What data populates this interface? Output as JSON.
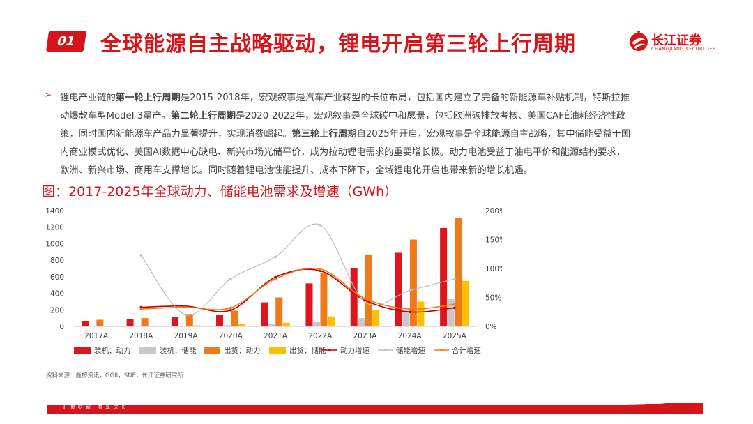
{
  "header": {
    "badge": "01",
    "title": "全球能源自主战略驱动，锂电开启第三轮上行周期"
  },
  "logo": {
    "cn": "长江证券",
    "en": "CHANGJIANG SECURITIES"
  },
  "body": {
    "bullet": "➢",
    "seg1": "锂电产业链的",
    "bold1": "第一轮上行周期",
    "seg2": "是2015-2018年，宏观叙事是汽车产业转型的卡位布局，包括国内建立了完备的新能源车补贴机制，特斯拉推动爆款车型Model  3量产。",
    "bold2": "第二轮上行周期",
    "seg3": "是2020-2022年，宏观叙事是全球碳中和愿景，包括欧洲碳排放考核、美国CAFÉ油耗经济性政策，同时国内新能源车产品力显著提升，实现消费崛起。",
    "bold3": "第三轮上行周期",
    "seg4": "自2025年开启，宏观叙事是全球能源自主战略，其中储能受益于国内商业模式优化、美国AI数据中心缺电、新兴市场光储平价，成为拉动锂电需求的重要增长极。动力电池受益于油电平价和能源结构要求，欧洲、新兴市场、商用车支撑增长。同时随着锂电池性能提升、成本下降下，全域锂电化开启也带来新的增长机遇。"
  },
  "chart_title": "图：2017-2025年全球动力、储能电池需求及增速（GWh）",
  "source": "资料来源：鑫椤资讯，GGII，SNE，长江证券研究所",
  "footer_text": "汇聚财智  共享成长",
  "colors": {
    "brand_red": "#d7141a",
    "inst_power": "#e0141c",
    "inst_storage": "#c8c8c8",
    "ship_power": "#f07a1a",
    "ship_storage": "#ffc000",
    "power_growth": "#c00000",
    "storage_growth": "#bfbfbf",
    "total_growth": "#f07a1a"
  },
  "chart_data": {
    "type": "bar",
    "categories": [
      "2017A",
      "2018A",
      "2019A",
      "2020A",
      "2021A",
      "2022A",
      "2023A",
      "2024A",
      "2025A"
    ],
    "ylim": [
      0,
      1400
    ],
    "yticks": [
      0,
      200,
      400,
      600,
      800,
      1000,
      1200,
      1400
    ],
    "y2lim": [
      0,
      2.0
    ],
    "y2ticks": [
      "0%",
      "50%",
      "100%",
      "150%",
      "200%"
    ],
    "series": [
      {
        "name": "装机：动力",
        "kind": "bar",
        "values": [
          60,
          90,
          110,
          140,
          290,
          520,
          700,
          890,
          1190
        ]
      },
      {
        "name": "装机：储能",
        "kind": "bar",
        "values": [
          2,
          5,
          8,
          14,
          30,
          50,
          100,
          190,
          330
        ]
      },
      {
        "name": "出货：动力",
        "kind": "bar",
        "values": [
          80,
          100,
          150,
          190,
          350,
          650,
          870,
          1050,
          1310
        ]
      },
      {
        "name": "出货：储能",
        "kind": "bar",
        "values": [
          5,
          10,
          12,
          25,
          45,
          120,
          200,
          300,
          550
        ]
      },
      {
        "name": "动力增速",
        "kind": "line",
        "values": [
          null,
          0.33,
          0.35,
          0.28,
          0.85,
          0.96,
          0.45,
          0.25,
          0.32
        ]
      },
      {
        "name": "储能增速",
        "kind": "line",
        "values": [
          null,
          1.23,
          0.2,
          0.82,
          1.2,
          1.75,
          0.42,
          0.62,
          0.82
        ]
      },
      {
        "name": "合计增速",
        "kind": "line",
        "values": [
          null,
          0.3,
          0.33,
          0.32,
          0.82,
          0.99,
          0.48,
          0.3,
          0.38
        ]
      }
    ],
    "legend_position": "bottom"
  }
}
